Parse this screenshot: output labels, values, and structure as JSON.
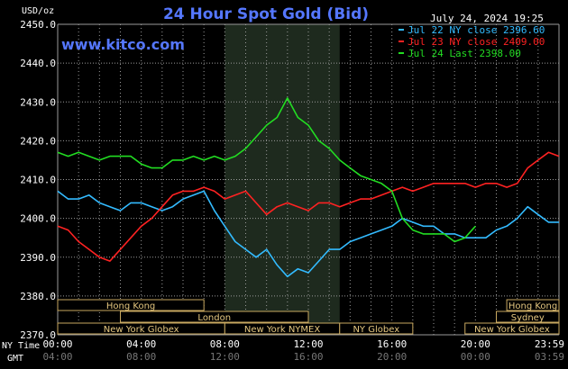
{
  "chart_data": {
    "type": "line",
    "title": "24 Hour Spot Gold (Bid)",
    "source": "www.kitco.com",
    "unit_label": "USD/oz",
    "timestamp": "July 24, 2024 19:25",
    "ylim": [
      2370,
      2450
    ],
    "y_ticks": [
      "2450.0",
      "2440.0",
      "2430.0",
      "2420.0",
      "2410.0",
      "2400.0",
      "2390.0",
      "2380.0",
      "2370.0"
    ],
    "x_label_ny": "NY Time",
    "x_label_gmt": "GMT",
    "x_ticks_ny": [
      "00:00",
      "04:00",
      "08:00",
      "12:00",
      "16:00",
      "20:00",
      "23:59"
    ],
    "x_ticks_gmt": [
      "04:00",
      "08:00",
      "12:00",
      "16:00",
      "20:00",
      "00:00",
      "03:59"
    ],
    "grid": true,
    "legend_position": "top-right",
    "shaded_session": {
      "label": "New York NYMEX",
      "x": [
        8.0,
        13.5
      ]
    },
    "series": [
      {
        "name": "Jul 22 NY close 2396.60",
        "color": "#33bbff",
        "x": [
          0,
          0.5,
          1,
          1.5,
          2,
          2.5,
          3,
          3.5,
          4,
          4.5,
          5,
          5.5,
          6,
          6.5,
          7,
          7.5,
          8,
          8.5,
          9,
          9.5,
          10,
          10.5,
          11,
          11.5,
          12,
          12.5,
          13,
          13.5,
          14,
          14.5,
          15,
          15.5,
          16,
          16.5,
          17,
          17.5,
          18,
          18.5,
          19,
          19.5,
          20,
          20.5,
          21,
          21.5,
          22,
          22.5,
          23,
          23.5,
          24
        ],
        "values": [
          2407,
          2405,
          2405,
          2406,
          2404,
          2403,
          2402,
          2404,
          2404,
          2403,
          2402,
          2403,
          2405,
          2406,
          2407,
          2402,
          2398,
          2394,
          2392,
          2390,
          2392,
          2388,
          2385,
          2387,
          2386,
          2389,
          2392,
          2392,
          2394,
          2395,
          2396,
          2397,
          2398,
          2400,
          2399,
          2398,
          2398,
          2396,
          2396,
          2395,
          2395,
          2395,
          2397,
          2398,
          2400,
          2403,
          2401,
          2399,
          2399
        ]
      },
      {
        "name": "Jul 23 NY close 2409.00",
        "color": "#ff2222",
        "x": [
          0,
          0.5,
          1,
          1.5,
          2,
          2.5,
          3,
          3.5,
          4,
          4.5,
          5,
          5.5,
          6,
          6.5,
          7,
          7.5,
          8,
          8.5,
          9,
          9.5,
          10,
          10.5,
          11,
          11.5,
          12,
          12.5,
          13,
          13.5,
          14,
          14.5,
          15,
          15.5,
          16,
          16.5,
          17,
          17.5,
          18,
          18.5,
          19,
          19.5,
          20,
          20.5,
          21,
          21.5,
          22,
          22.5,
          23,
          23.5,
          24
        ],
        "values": [
          2398,
          2397,
          2394,
          2392,
          2390,
          2389,
          2392,
          2395,
          2398,
          2400,
          2403,
          2406,
          2407,
          2407,
          2408,
          2407,
          2405,
          2406,
          2407,
          2404,
          2401,
          2403,
          2404,
          2403,
          2402,
          2404,
          2404,
          2403,
          2404,
          2405,
          2405,
          2406,
          2407,
          2408,
          2407,
          2408,
          2409,
          2409,
          2409,
          2409,
          2408,
          2409,
          2409,
          2408,
          2409,
          2413,
          2415,
          2417,
          2416
        ]
      },
      {
        "name": "Jul 24 Last 2398.00",
        "color": "#22dd22",
        "x": [
          0,
          0.5,
          1,
          1.5,
          2,
          2.5,
          3,
          3.5,
          4,
          4.5,
          5,
          5.5,
          6,
          6.5,
          7,
          7.5,
          8,
          8.5,
          9,
          9.5,
          10,
          10.5,
          11,
          11.5,
          12,
          12.5,
          13,
          13.5,
          14,
          14.5,
          15,
          15.5,
          16,
          16.5,
          17,
          17.5,
          18,
          18.5,
          19,
          19.5,
          20
        ],
        "values": [
          2417,
          2416,
          2417,
          2416,
          2415,
          2416,
          2416,
          2416,
          2414,
          2413,
          2413,
          2415,
          2415,
          2416,
          2415,
          2416,
          2415,
          2416,
          2418,
          2421,
          2424,
          2426,
          2431,
          2426,
          2424,
          2420,
          2418,
          2415,
          2413,
          2411,
          2410,
          2409,
          2407,
          2400,
          2397,
          2396,
          2396,
          2396,
          2394,
          2395,
          2398
        ]
      }
    ],
    "sessions": [
      {
        "label": "Hong Kong",
        "row": 1,
        "start": 0,
        "end": 7
      },
      {
        "label": "Hong Kong",
        "row": 1,
        "start": 21.5,
        "end": 24
      },
      {
        "label": "London",
        "row": 2,
        "start": 3,
        "end": 12
      },
      {
        "label": "Sydney",
        "row": 2,
        "start": 21,
        "end": 24
      },
      {
        "label": "New York Globex",
        "row": 3,
        "start": 0,
        "end": 8
      },
      {
        "label": "New York NYMEX",
        "row": 3,
        "start": 8,
        "end": 13.5
      },
      {
        "label": "NY Globex",
        "row": 3,
        "start": 13.5,
        "end": 17
      },
      {
        "label": "New York Globex",
        "row": 3,
        "start": 19.5,
        "end": 24
      }
    ]
  }
}
